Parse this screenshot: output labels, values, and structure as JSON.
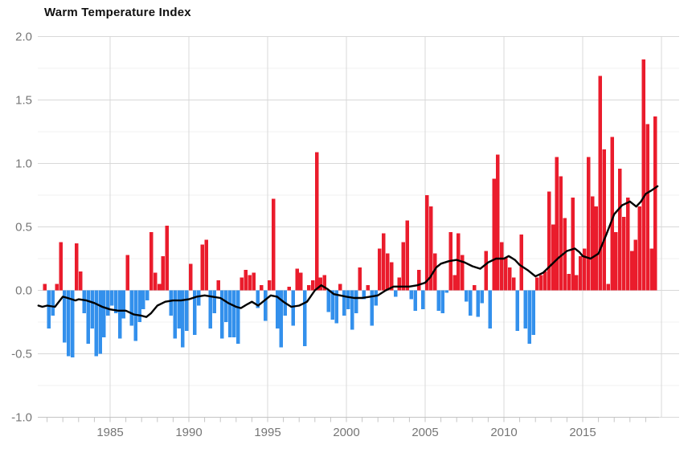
{
  "title": "Warm Temperature Index",
  "colors": {
    "positive_bar": "#ea1c2c",
    "negative_bar": "#3390ec",
    "trend_line": "#000000",
    "grid_major": "#d8d8d8",
    "grid_minor": "#f1f1f1",
    "axis_line": "#c4c4c4",
    "axis_label": "#767676",
    "title_text": "#111111"
  },
  "chart_data": {
    "type": "bar",
    "title": "Warm Temperature Index",
    "frequency": "quarterly",
    "start_quarter": "1980Q4",
    "xlabel": "",
    "ylabel": "",
    "ylim": [
      -1.0,
      2.0
    ],
    "grid": true,
    "y_tick_labels": [
      "2.0",
      "1.5",
      "1.0",
      "0.5",
      "0.0",
      "-0.5",
      "-1.0"
    ],
    "y_ticks": [
      2.0,
      1.5,
      1.0,
      0.5,
      0.0,
      -0.5,
      -1.0
    ],
    "x_tick_labels": [
      "1985",
      "1990",
      "1995",
      "2000",
      "2005",
      "2010",
      "2015"
    ],
    "x_tick_years": [
      1985,
      1990,
      1995,
      2000,
      2005,
      2010,
      2015
    ],
    "values": [
      0.05,
      -0.3,
      -0.2,
      0.05,
      0.38,
      -0.41,
      -0.52,
      -0.53,
      0.37,
      0.15,
      -0.18,
      -0.42,
      -0.3,
      -0.52,
      -0.5,
      -0.37,
      -0.2,
      -0.12,
      -0.18,
      -0.38,
      -0.22,
      0.28,
      -0.28,
      -0.4,
      -0.25,
      -0.15,
      -0.08,
      0.46,
      0.14,
      0.05,
      0.27,
      0.51,
      -0.2,
      -0.38,
      -0.3,
      -0.45,
      -0.32,
      0.21,
      -0.35,
      -0.12,
      0.36,
      0.4,
      -0.3,
      -0.18,
      0.08,
      -0.38,
      -0.25,
      -0.37,
      -0.37,
      -0.42,
      0.1,
      0.16,
      0.12,
      0.14,
      -0.14,
      0.04,
      -0.24,
      0.08,
      0.72,
      -0.3,
      -0.45,
      -0.2,
      0.03,
      -0.28,
      0.17,
      0.14,
      -0.44,
      0.04,
      0.08,
      1.09,
      0.1,
      0.12,
      -0.17,
      -0.23,
      -0.26,
      0.05,
      -0.2,
      -0.15,
      -0.31,
      -0.18,
      0.18,
      -0.07,
      0.04,
      -0.28,
      -0.12,
      0.33,
      0.45,
      0.29,
      0.22,
      -0.05,
      0.1,
      0.38,
      0.55,
      -0.07,
      -0.16,
      0.16,
      -0.15,
      0.75,
      0.66,
      0.29,
      -0.16,
      -0.18,
      -0.02,
      0.46,
      0.12,
      0.45,
      0.28,
      -0.09,
      -0.2,
      0.04,
      -0.21,
      -0.1,
      0.31,
      -0.3,
      0.88,
      1.07,
      0.38,
      0.26,
      0.18,
      0.1,
      -0.32,
      0.44,
      -0.3,
      -0.42,
      -0.35,
      0.1,
      0.12,
      0.15,
      0.78,
      0.52,
      1.05,
      0.9,
      0.57,
      0.13,
      0.73,
      0.12,
      0.27,
      0.33,
      1.05,
      0.74,
      0.66,
      1.69,
      1.11,
      0.05,
      1.21,
      0.46,
      0.96,
      0.58,
      0.73,
      0.31,
      0.4,
      0.66,
      1.82,
      1.31,
      0.33,
      1.37
    ],
    "trend_line": {
      "name": "smoothed-index-line",
      "points": [
        [
          1980.45,
          -0.12
        ],
        [
          1980.7,
          -0.13
        ],
        [
          1981.0,
          -0.12
        ],
        [
          1981.5,
          -0.13
        ],
        [
          1982.0,
          -0.05
        ],
        [
          1982.3,
          -0.06
        ],
        [
          1982.8,
          -0.08
        ],
        [
          1983.0,
          -0.07
        ],
        [
          1983.5,
          -0.08
        ],
        [
          1984.0,
          -0.1
        ],
        [
          1984.5,
          -0.13
        ],
        [
          1985.0,
          -0.15
        ],
        [
          1985.5,
          -0.16
        ],
        [
          1986.0,
          -0.16
        ],
        [
          1986.5,
          -0.19
        ],
        [
          1987.0,
          -0.2
        ],
        [
          1987.3,
          -0.21
        ],
        [
          1987.6,
          -0.18
        ],
        [
          1988.0,
          -0.12
        ],
        [
          1988.5,
          -0.09
        ],
        [
          1989.0,
          -0.08
        ],
        [
          1989.5,
          -0.08
        ],
        [
          1990.0,
          -0.07
        ],
        [
          1990.5,
          -0.05
        ],
        [
          1991.0,
          -0.04
        ],
        [
          1991.5,
          -0.05
        ],
        [
          1992.0,
          -0.06
        ],
        [
          1992.5,
          -0.1
        ],
        [
          1993.0,
          -0.13
        ],
        [
          1993.3,
          -0.14
        ],
        [
          1993.7,
          -0.11
        ],
        [
          1994.0,
          -0.09
        ],
        [
          1994.4,
          -0.12
        ],
        [
          1994.8,
          -0.08
        ],
        [
          1995.2,
          -0.04
        ],
        [
          1995.6,
          -0.05
        ],
        [
          1996.0,
          -0.09
        ],
        [
          1996.5,
          -0.13
        ],
        [
          1997.0,
          -0.12
        ],
        [
          1997.5,
          -0.09
        ],
        [
          1998.0,
          0.0
        ],
        [
          1998.4,
          0.04
        ],
        [
          1998.8,
          0.01
        ],
        [
          1999.2,
          -0.03
        ],
        [
          1999.6,
          -0.04
        ],
        [
          2000.0,
          -0.05
        ],
        [
          2000.5,
          -0.06
        ],
        [
          2001.0,
          -0.06
        ],
        [
          2001.5,
          -0.05
        ],
        [
          2002.0,
          -0.04
        ],
        [
          2002.5,
          0.0
        ],
        [
          2003.0,
          0.03
        ],
        [
          2003.5,
          0.03
        ],
        [
          2004.0,
          0.03
        ],
        [
          2004.5,
          0.04
        ],
        [
          2005.0,
          0.06
        ],
        [
          2005.3,
          0.1
        ],
        [
          2005.7,
          0.18
        ],
        [
          2006.0,
          0.21
        ],
        [
          2006.5,
          0.23
        ],
        [
          2007.0,
          0.24
        ],
        [
          2007.5,
          0.22
        ],
        [
          2008.0,
          0.19
        ],
        [
          2008.5,
          0.17
        ],
        [
          2009.0,
          0.22
        ],
        [
          2009.5,
          0.25
        ],
        [
          2010.0,
          0.25
        ],
        [
          2010.3,
          0.27
        ],
        [
          2010.7,
          0.24
        ],
        [
          2011.0,
          0.2
        ],
        [
          2011.5,
          0.16
        ],
        [
          2012.0,
          0.11
        ],
        [
          2012.5,
          0.14
        ],
        [
          2013.0,
          0.2
        ],
        [
          2013.5,
          0.26
        ],
        [
          2014.0,
          0.31
        ],
        [
          2014.5,
          0.33
        ],
        [
          2014.8,
          0.3
        ],
        [
          2015.0,
          0.27
        ],
        [
          2015.5,
          0.25
        ],
        [
          2016.0,
          0.29
        ],
        [
          2016.5,
          0.44
        ],
        [
          2017.0,
          0.6
        ],
        [
          2017.5,
          0.67
        ],
        [
          2018.0,
          0.7
        ],
        [
          2018.4,
          0.66
        ],
        [
          2018.7,
          0.7
        ],
        [
          2019.0,
          0.76
        ],
        [
          2019.4,
          0.79
        ],
        [
          2019.75,
          0.82
        ]
      ]
    }
  }
}
